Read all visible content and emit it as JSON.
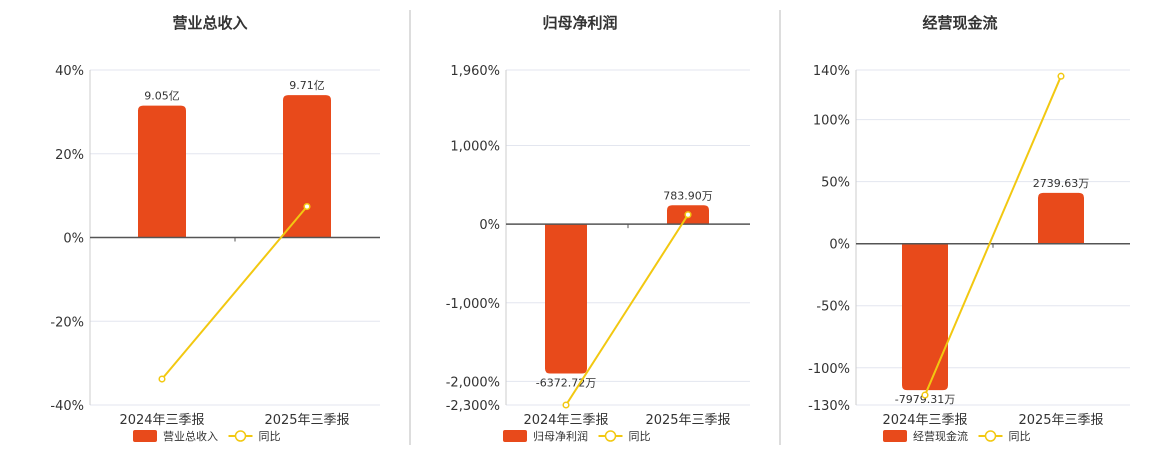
{
  "chart_data": [
    {
      "type": "bar",
      "title": "营业总收入",
      "categories": [
        "2024年三季报",
        "2025年三季报"
      ],
      "ylim": [
        -40,
        40
      ],
      "yticks": [
        "40%",
        "20%",
        "0%",
        "-20%",
        "-40%"
      ],
      "bars": {
        "name": "营业总收入",
        "values": [
          31.5,
          34.0
        ],
        "labels": [
          "9.05亿",
          "9.71亿"
        ]
      },
      "line": {
        "name": "同比",
        "values": [
          -33.8,
          7.4
        ]
      },
      "legend": "bottom",
      "grid": true
    },
    {
      "type": "bar",
      "title": "归母净利润",
      "categories": [
        "2024年三季报",
        "2025年三季报"
      ],
      "ylim": [
        -2300,
        1960
      ],
      "yticks": [
        "1,960%",
        "1,000%",
        "0%",
        "-1,000%",
        "-2,000%",
        "-2,300%"
      ],
      "bars": {
        "name": "归母净利润",
        "values": [
          -1900,
          240
        ],
        "labels": [
          "-6372.72万",
          "783.90万"
        ]
      },
      "line": {
        "name": "同比",
        "values": [
          -2300,
          120
        ]
      },
      "legend": "bottom",
      "grid": true
    },
    {
      "type": "bar",
      "title": "经营现金流",
      "categories": [
        "2024年三季报",
        "2025年三季报"
      ],
      "ylim": [
        -130,
        140
      ],
      "yticks": [
        "140%",
        "100%",
        "50%",
        "0%",
        "-50%",
        "-100%",
        "-130%"
      ],
      "bars": {
        "name": "经营现金流",
        "values": [
          -118,
          41
        ],
        "labels": [
          "-7979.31万",
          "2739.63万"
        ]
      },
      "line": {
        "name": "同比",
        "values": [
          -122,
          135
        ]
      },
      "legend": "bottom",
      "grid": true
    }
  ],
  "colors": {
    "bar": "#e84a1b",
    "line": "#f2c811",
    "grid": "#e3e6ef",
    "axis": "#555555",
    "divider": "#bbbbbb"
  }
}
